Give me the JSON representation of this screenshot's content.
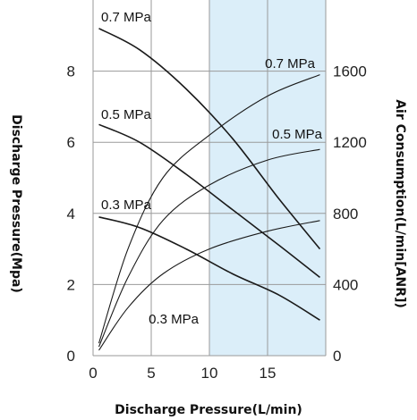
{
  "chart_data": {
    "type": "line",
    "title": "",
    "xlabel": "Discharge Pressure(L/min)",
    "ylabel": "Discharge Pressure(Mpa)",
    "y2label": "Air Consumption(L/min[ANR])",
    "xlim": [
      0,
      20
    ],
    "ylim": [
      0,
      10
    ],
    "y2lim": [
      0,
      2000
    ],
    "xticks": [
      "0",
      "5",
      "10",
      "15"
    ],
    "yticks": [
      "0",
      "2",
      "4",
      "6",
      "8"
    ],
    "y2ticks": [
      "0",
      "400",
      "800",
      "1200",
      "1600"
    ],
    "highlight_region": {
      "x_from": 10,
      "x_to": 20,
      "color": "#dbeef9"
    },
    "grid": true,
    "series": [
      {
        "name": "0.7 MPa",
        "axis": "left",
        "x": [
          0.5,
          4,
          8,
          12,
          16,
          19.5
        ],
        "y": [
          9.2,
          8.6,
          7.5,
          6.1,
          4.4,
          3.0
        ]
      },
      {
        "name": "0.5 MPa",
        "axis": "left",
        "x": [
          0.5,
          4,
          8,
          12,
          16,
          19.5
        ],
        "y": [
          6.5,
          6.0,
          5.1,
          4.1,
          3.1,
          2.2
        ]
      },
      {
        "name": "0.3 MPa",
        "axis": "left",
        "x": [
          0.5,
          4,
          8,
          12,
          16,
          19.5
        ],
        "y": [
          3.9,
          3.6,
          3.0,
          2.3,
          1.7,
          1.0
        ]
      },
      {
        "name": "0.7 MPa",
        "axis": "right",
        "x": [
          0.5,
          3,
          6,
          10,
          15,
          19.5
        ],
        "y": [
          70,
          600,
          1000,
          1240,
          1460,
          1580
        ]
      },
      {
        "name": "0.5 MPa",
        "axis": "right",
        "x": [
          0.5,
          3,
          6,
          10,
          15,
          19.5
        ],
        "y": [
          50,
          440,
          760,
          960,
          1100,
          1160
        ]
      },
      {
        "name": "0.3 MPa",
        "axis": "right",
        "x": [
          0.5,
          3,
          6,
          10,
          15,
          19.5
        ],
        "y": [
          30,
          270,
          460,
          600,
          700,
          760
        ]
      }
    ]
  },
  "colors": {
    "curve": "#1a1a1a",
    "grid": "#9a9a9a",
    "highlight": "#dbeef9"
  }
}
